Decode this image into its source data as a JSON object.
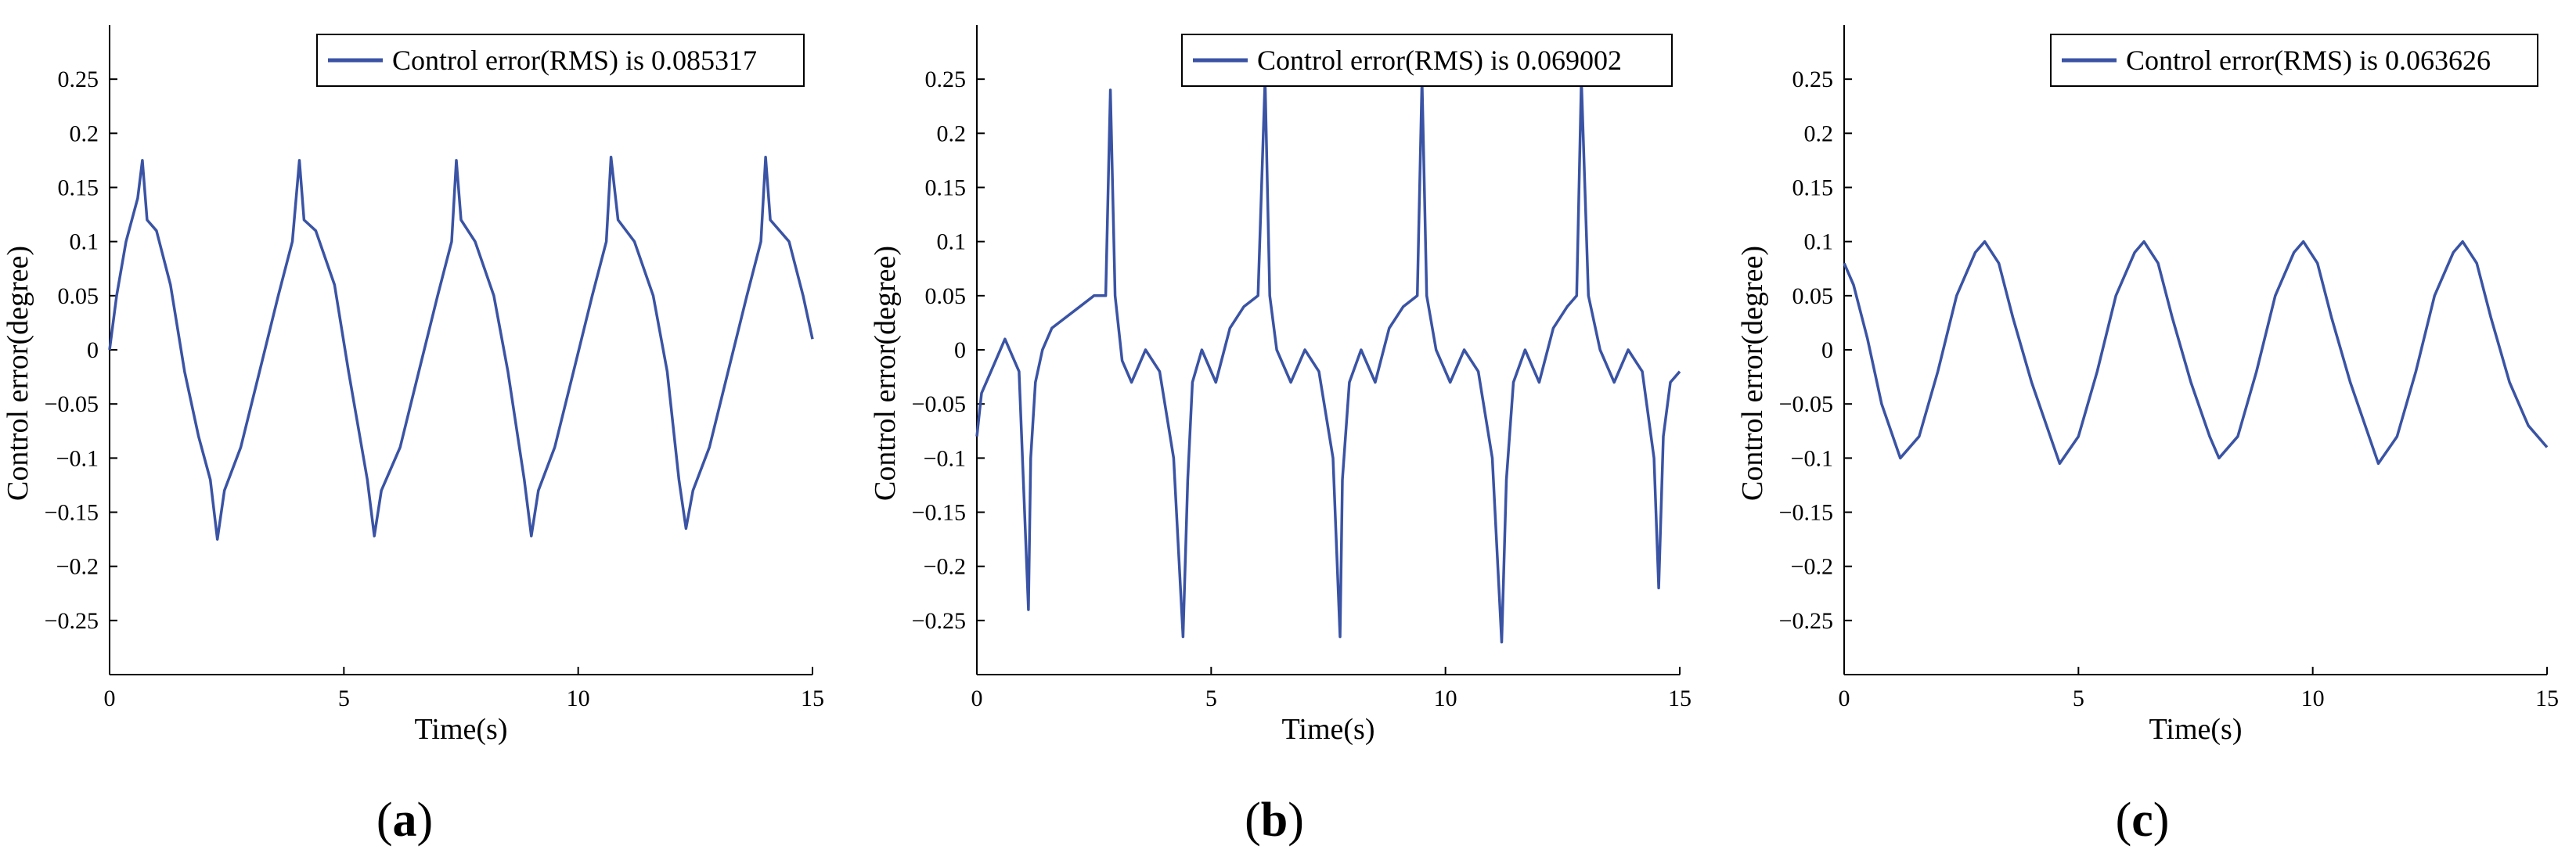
{
  "figure": {
    "panel_labels": [
      "(a)",
      "(b)",
      "(c)"
    ]
  },
  "chart_data": [
    {
      "type": "line",
      "panel": "(a)",
      "title": "",
      "xlabel": "Time(s)",
      "ylabel": "Control error(degree)",
      "xlim": [
        0,
        15
      ],
      "ylim": [
        -0.3,
        0.3
      ],
      "xticks": [
        0,
        5,
        10,
        15
      ],
      "xtick_labels": [
        "0",
        "5",
        "10",
        "15"
      ],
      "yticks": [
        -0.25,
        -0.2,
        -0.15,
        -0.1,
        -0.05,
        0,
        0.05,
        0.1,
        0.15,
        0.2,
        0.25
      ],
      "ytick_labels": [
        "−0.25",
        "−0.2",
        "−0.15",
        "−0.1",
        "−0.05",
        "0",
        "0.05",
        "0.1",
        "0.15",
        "0.2",
        "0.25"
      ],
      "grid": false,
      "legend_position": "top-right",
      "color": "#3a53a4",
      "series": [
        {
          "name": "Control error(RMS) is 0.085317",
          "x": [
            0,
            0.15,
            0.35,
            0.6,
            0.7,
            0.8,
            1.0,
            1.3,
            1.6,
            1.9,
            2.15,
            2.3,
            2.45,
            2.8,
            3.2,
            3.6,
            3.9,
            4.05,
            4.15,
            4.4,
            4.8,
            5.1,
            5.5,
            5.65,
            5.8,
            6.2,
            6.6,
            7.0,
            7.3,
            7.4,
            7.5,
            7.8,
            8.2,
            8.5,
            8.85,
            9.0,
            9.15,
            9.5,
            9.9,
            10.3,
            10.6,
            10.7,
            10.85,
            11.2,
            11.6,
            11.9,
            12.15,
            12.3,
            12.45,
            12.8,
            13.2,
            13.6,
            13.9,
            14.0,
            14.1,
            14.5,
            14.8,
            15.0
          ],
          "y": [
            0.0,
            0.05,
            0.1,
            0.14,
            0.175,
            0.12,
            0.11,
            0.06,
            -0.02,
            -0.08,
            -0.12,
            -0.175,
            -0.13,
            -0.09,
            -0.02,
            0.05,
            0.1,
            0.175,
            0.12,
            0.11,
            0.06,
            -0.02,
            -0.12,
            -0.172,
            -0.13,
            -0.09,
            -0.02,
            0.05,
            0.1,
            0.175,
            0.12,
            0.1,
            0.05,
            -0.02,
            -0.12,
            -0.172,
            -0.13,
            -0.09,
            -0.02,
            0.05,
            0.1,
            0.178,
            0.12,
            0.1,
            0.05,
            -0.02,
            -0.12,
            -0.165,
            -0.13,
            -0.09,
            -0.02,
            0.05,
            0.1,
            0.178,
            0.12,
            0.1,
            0.05,
            0.01
          ]
        }
      ]
    },
    {
      "type": "line",
      "panel": "(b)",
      "title": "",
      "xlabel": "Time(s)",
      "ylabel": "Control error(degree)",
      "xlim": [
        0,
        15
      ],
      "ylim": [
        -0.3,
        0.3
      ],
      "xticks": [
        0,
        5,
        10,
        15
      ],
      "xtick_labels": [
        "0",
        "5",
        "10",
        "15"
      ],
      "yticks": [
        -0.25,
        -0.2,
        -0.15,
        -0.1,
        -0.05,
        0,
        0.05,
        0.1,
        0.15,
        0.2,
        0.25
      ],
      "ytick_labels": [
        "−0.25",
        "−0.2",
        "−0.15",
        "−0.1",
        "−0.05",
        "0",
        "0.05",
        "0.1",
        "0.15",
        "0.2",
        "0.25"
      ],
      "grid": false,
      "legend_position": "top-right",
      "color": "#3a53a4",
      "series": [
        {
          "name": "Control error(RMS) is 0.069002",
          "x": [
            0,
            0.1,
            0.3,
            0.6,
            0.9,
            1.1,
            1.15,
            1.25,
            1.4,
            1.6,
            1.9,
            2.2,
            2.5,
            2.75,
            2.85,
            2.95,
            3.1,
            3.3,
            3.6,
            3.9,
            4.2,
            4.4,
            4.5,
            4.6,
            4.8,
            5.1,
            5.4,
            5.7,
            6.0,
            6.15,
            6.25,
            6.4,
            6.7,
            7.0,
            7.3,
            7.6,
            7.75,
            7.8,
            7.95,
            8.2,
            8.5,
            8.8,
            9.1,
            9.4,
            9.5,
            9.6,
            9.8,
            10.1,
            10.4,
            10.7,
            11.0,
            11.2,
            11.3,
            11.45,
            11.7,
            12.0,
            12.3,
            12.6,
            12.8,
            12.9,
            13.05,
            13.3,
            13.6,
            13.9,
            14.2,
            14.45,
            14.55,
            14.65,
            14.8,
            15.0
          ],
          "y": [
            -0.08,
            -0.04,
            -0.02,
            0.01,
            -0.02,
            -0.24,
            -0.1,
            -0.03,
            0.0,
            0.02,
            0.03,
            0.04,
            0.05,
            0.05,
            0.24,
            0.05,
            -0.01,
            -0.03,
            0.0,
            -0.02,
            -0.1,
            -0.265,
            -0.12,
            -0.03,
            0.0,
            -0.03,
            0.02,
            0.04,
            0.05,
            0.25,
            0.05,
            0.0,
            -0.03,
            0.0,
            -0.02,
            -0.1,
            -0.265,
            -0.12,
            -0.03,
            0.0,
            -0.03,
            0.02,
            0.04,
            0.05,
            0.25,
            0.05,
            0.0,
            -0.03,
            0.0,
            -0.02,
            -0.1,
            -0.27,
            -0.12,
            -0.03,
            0.0,
            -0.03,
            0.02,
            0.04,
            0.05,
            0.25,
            0.05,
            0.0,
            -0.03,
            0.0,
            -0.02,
            -0.1,
            -0.22,
            -0.08,
            -0.03,
            -0.02
          ]
        }
      ]
    },
    {
      "type": "line",
      "panel": "(c)",
      "title": "",
      "xlabel": "Time(s)",
      "ylabel": "Control error(degree)",
      "xlim": [
        0,
        15
      ],
      "ylim": [
        -0.3,
        0.3
      ],
      "xticks": [
        0,
        5,
        10,
        15
      ],
      "xtick_labels": [
        "0",
        "5",
        "10",
        "15"
      ],
      "yticks": [
        -0.25,
        -0.2,
        -0.15,
        -0.1,
        -0.05,
        0,
        0.05,
        0.1,
        0.15,
        0.2,
        0.25
      ],
      "ytick_labels": [
        "−0.25",
        "−0.2",
        "−0.15",
        "−0.1",
        "−0.05",
        "0",
        "0.05",
        "0.1",
        "0.15",
        "0.2",
        "0.25"
      ],
      "grid": false,
      "legend_position": "top-right",
      "color": "#3a53a4",
      "series": [
        {
          "name": "Control error(RMS) is 0.063626",
          "x": [
            0,
            0.2,
            0.5,
            0.8,
            1.2,
            1.6,
            2.0,
            2.4,
            2.8,
            3.0,
            3.3,
            3.6,
            4.0,
            4.4,
            4.6,
            5.0,
            5.4,
            5.8,
            6.2,
            6.4,
            6.7,
            7.0,
            7.4,
            7.8,
            8.0,
            8.4,
            8.8,
            9.2,
            9.6,
            9.8,
            10.1,
            10.4,
            10.8,
            11.2,
            11.4,
            11.8,
            12.2,
            12.6,
            13.0,
            13.2,
            13.5,
            13.8,
            14.2,
            14.6,
            15.0
          ],
          "y": [
            0.08,
            0.06,
            0.01,
            -0.05,
            -0.1,
            -0.08,
            -0.02,
            0.05,
            0.09,
            0.1,
            0.08,
            0.03,
            -0.03,
            -0.08,
            -0.105,
            -0.08,
            -0.02,
            0.05,
            0.09,
            0.1,
            0.08,
            0.03,
            -0.03,
            -0.08,
            -0.1,
            -0.08,
            -0.02,
            0.05,
            0.09,
            0.1,
            0.08,
            0.03,
            -0.03,
            -0.08,
            -0.105,
            -0.08,
            -0.02,
            0.05,
            0.09,
            0.1,
            0.08,
            0.03,
            -0.03,
            -0.07,
            -0.09
          ]
        }
      ]
    }
  ]
}
